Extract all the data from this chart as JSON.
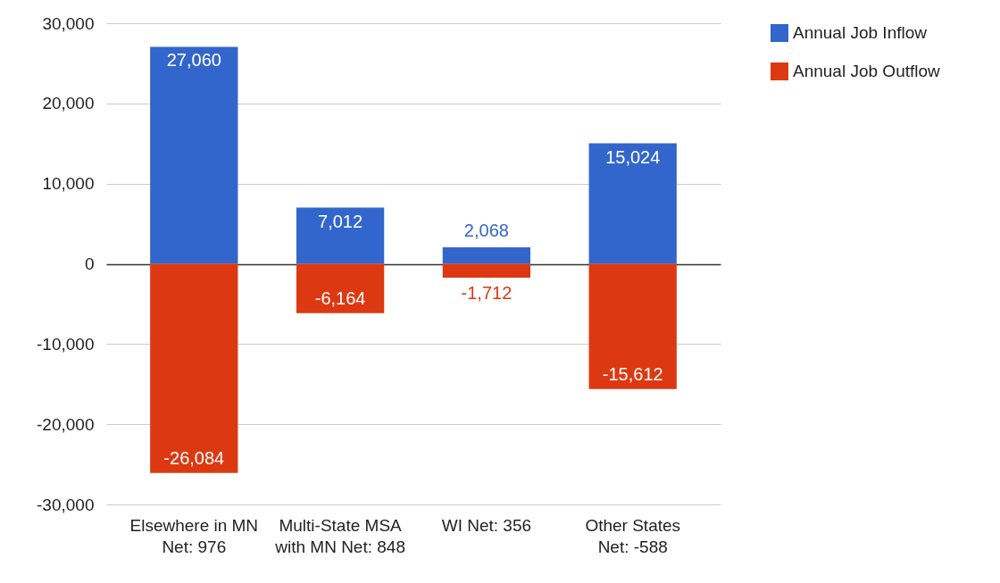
{
  "chart_data": {
    "type": "bar",
    "stacked": true,
    "categories": [
      "Elsewhere in MN Net: 976",
      "Multi-State MSA with MN Net: 848",
      "WI Net: 356",
      "Other States Net: -588"
    ],
    "series": [
      {
        "name": "Annual Job Inflow",
        "color": "#3366cc",
        "values": [
          27060,
          7012,
          2068,
          15024
        ],
        "value_labels": [
          "27,060",
          "7,012",
          "2,068",
          "15,024"
        ]
      },
      {
        "name": "Annual Job Outflow",
        "color": "#dc3912",
        "values": [
          -26084,
          -6164,
          -1712,
          -15612
        ],
        "value_labels": [
          "-26,084",
          "-6,164",
          "-1,712",
          "-15,612"
        ]
      }
    ],
    "ylim": [
      -30000,
      30000
    ],
    "yticks": [
      {
        "value": -30000,
        "label": "-30,000"
      },
      {
        "value": -20000,
        "label": "-20,000"
      },
      {
        "value": -10000,
        "label": "-10,000"
      },
      0,
      {
        "value": 10000,
        "label": "10,000"
      },
      {
        "value": 20000,
        "label": "20,000"
      },
      {
        "value": 30000,
        "label": "30,000"
      }
    ],
    "grid": "y",
    "legend": "top right"
  }
}
